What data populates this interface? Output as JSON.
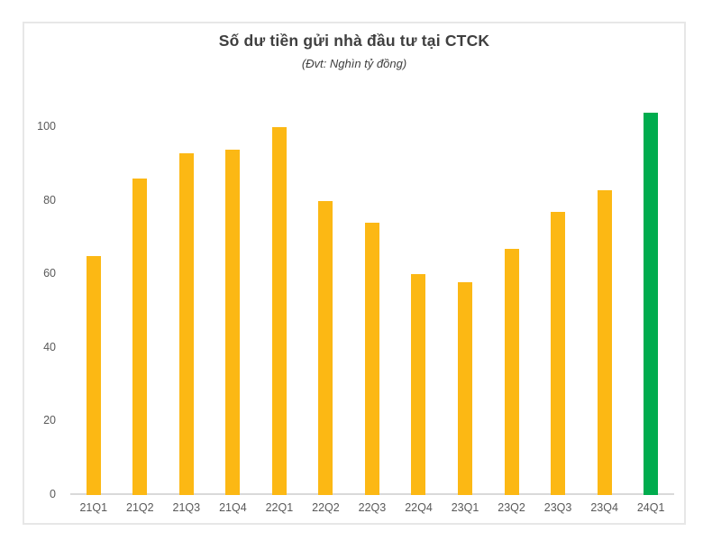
{
  "chart_data": {
    "type": "bar",
    "title": "Số dư tiền gửi nhà đầu tư tại CTCK",
    "subtitle": "(Đvt: Nghìn tỷ đồng)",
    "unit": "Nghìn tỷ đồng",
    "categories": [
      "21Q1",
      "21Q2",
      "21Q3",
      "21Q4",
      "22Q1",
      "22Q2",
      "22Q3",
      "22Q4",
      "23Q1",
      "23Q2",
      "23Q3",
      "23Q4",
      "24Q1"
    ],
    "values": [
      65,
      86,
      93,
      94,
      100,
      80,
      74,
      60,
      58,
      67,
      77,
      83,
      104
    ],
    "highlight_index": 12,
    "y_ticks": [
      0,
      20,
      40,
      60,
      80,
      100
    ],
    "ylim": [
      0,
      110
    ],
    "grid": false,
    "legend": "none",
    "colors": {
      "bar_default": "#FCB814",
      "bar_highlight": "#00AC4E",
      "axis_line": "#D9D9D9",
      "tick_label": "#595959",
      "title_text": "#3F3F3F",
      "card_border": "#E7E7E7"
    }
  }
}
